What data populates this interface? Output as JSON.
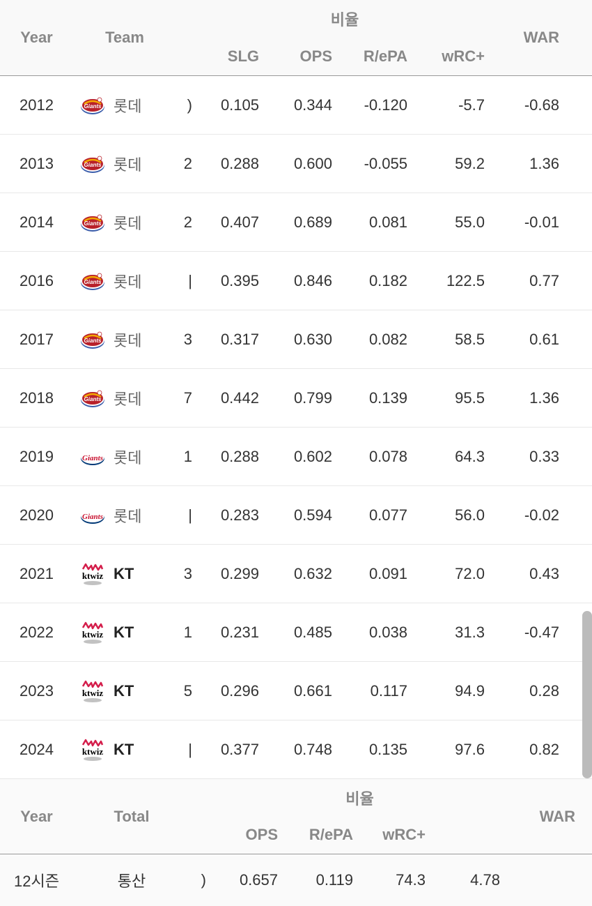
{
  "headers": {
    "year": "Year",
    "team": "Team",
    "ratio_group": "비율",
    "slg": "SLG",
    "ops": "OPS",
    "repa": "R/ePA",
    "wrc": "wRC+",
    "war": "WAR",
    "total": "Total"
  },
  "rows": [
    {
      "year": "2012",
      "team_type": "lotte_old",
      "team_name": "롯데",
      "team_bold": false,
      "partial": ")",
      "slg": "0.105",
      "ops": "0.344",
      "repa": "-0.120",
      "wrc": "-5.7",
      "war": "-0.68"
    },
    {
      "year": "2013",
      "team_type": "lotte_old",
      "team_name": "롯데",
      "team_bold": false,
      "partial": "2",
      "slg": "0.288",
      "ops": "0.600",
      "repa": "-0.055",
      "wrc": "59.2",
      "war": "1.36"
    },
    {
      "year": "2014",
      "team_type": "lotte_old",
      "team_name": "롯데",
      "team_bold": false,
      "partial": "2",
      "slg": "0.407",
      "ops": "0.689",
      "repa": "0.081",
      "wrc": "55.0",
      "war": "-0.01"
    },
    {
      "year": "2016",
      "team_type": "lotte_old",
      "team_name": "롯데",
      "team_bold": false,
      "partial": "|",
      "slg": "0.395",
      "ops": "0.846",
      "repa": "0.182",
      "wrc": "122.5",
      "war": "0.77"
    },
    {
      "year": "2017",
      "team_type": "lotte_old",
      "team_name": "롯데",
      "team_bold": false,
      "partial": "3",
      "slg": "0.317",
      "ops": "0.630",
      "repa": "0.082",
      "wrc": "58.5",
      "war": "0.61"
    },
    {
      "year": "2018",
      "team_type": "lotte_old",
      "team_name": "롯데",
      "team_bold": false,
      "partial": "7",
      "slg": "0.442",
      "ops": "0.799",
      "repa": "0.139",
      "wrc": "95.5",
      "war": "1.36"
    },
    {
      "year": "2019",
      "team_type": "lotte_new",
      "team_name": "롯데",
      "team_bold": false,
      "partial": "1",
      "slg": "0.288",
      "ops": "0.602",
      "repa": "0.078",
      "wrc": "64.3",
      "war": "0.33"
    },
    {
      "year": "2020",
      "team_type": "lotte_new",
      "team_name": "롯데",
      "team_bold": false,
      "partial": "|",
      "slg": "0.283",
      "ops": "0.594",
      "repa": "0.077",
      "wrc": "56.0",
      "war": "-0.02"
    },
    {
      "year": "2021",
      "team_type": "kt",
      "team_name": "KT",
      "team_bold": true,
      "partial": "3",
      "slg": "0.299",
      "ops": "0.632",
      "repa": "0.091",
      "wrc": "72.0",
      "war": "0.43"
    },
    {
      "year": "2022",
      "team_type": "kt",
      "team_name": "KT",
      "team_bold": true,
      "partial": "1",
      "slg": "0.231",
      "ops": "0.485",
      "repa": "0.038",
      "wrc": "31.3",
      "war": "-0.47"
    },
    {
      "year": "2023",
      "team_type": "kt",
      "team_name": "KT",
      "team_bold": true,
      "partial": "5",
      "slg": "0.296",
      "ops": "0.661",
      "repa": "0.117",
      "wrc": "94.9",
      "war": "0.28"
    },
    {
      "year": "2024",
      "team_type": "kt",
      "team_name": "KT",
      "team_bold": true,
      "partial": "|",
      "slg": "0.377",
      "ops": "0.748",
      "repa": "0.135",
      "wrc": "97.6",
      "war": "0.82"
    }
  ],
  "summary": {
    "seasons": "12시즌",
    "total_label": "통산",
    "partial": ")",
    "ops": "0.657",
    "repa": "0.119",
    "wrc": "74.3",
    "war": "4.78"
  },
  "colors": {
    "header_text": "#888888",
    "body_text": "#333333",
    "border": "#999999",
    "row_border": "#e8e8e8",
    "background": "#ffffff",
    "header_bg": "#f9f9f9",
    "scrollbar": "#bbbbbb"
  },
  "logos": {
    "lotte_old": {
      "primary": "#b8202a",
      "secondary": "#f4a800",
      "accent": "#3a5caa"
    },
    "lotte_new": {
      "primary": "#c8102e",
      "secondary": "#003876"
    },
    "kt": {
      "primary": "#000000",
      "secondary": "#d41e4b"
    }
  }
}
